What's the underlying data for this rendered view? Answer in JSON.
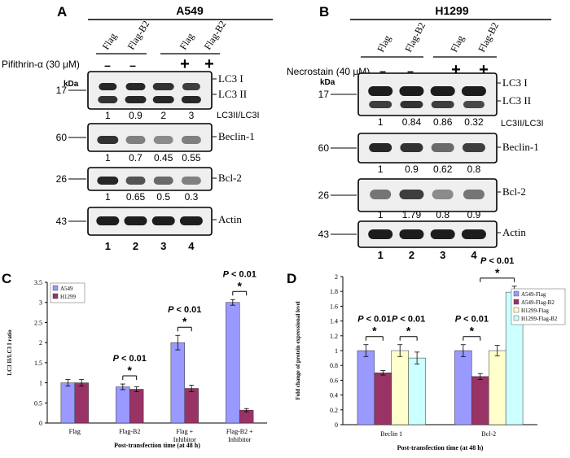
{
  "panels": {
    "A": {
      "label": "A",
      "cell_line": "A549",
      "lanes": [
        "Flag",
        "Flag-B2",
        "Flag",
        "Flag-B2"
      ],
      "treatment_label": "Pifithrin-α (30 μM)",
      "treatment_signs": [
        "–",
        "–",
        "+",
        "+"
      ],
      "kda_label": "kDa",
      "blots": [
        {
          "kda": "17",
          "labels": [
            "LC3 I",
            "LC3 II"
          ],
          "values": [
            "1",
            "0.9",
            "2",
            "3"
          ],
          "ratio_label": "LC3II/LC3I"
        },
        {
          "kda": "60",
          "labels": [
            "Beclin-1"
          ],
          "values": [
            "1",
            "0.7",
            "0.45",
            "0.55"
          ]
        },
        {
          "kda": "26",
          "labels": [
            "Bcl-2"
          ],
          "values": [
            "1",
            "0.65",
            "0.5",
            "0.3"
          ]
        },
        {
          "kda": "43",
          "labels": [
            "Actin"
          ],
          "values": []
        }
      ],
      "lane_numbers": [
        "1",
        "2",
        "3",
        "4"
      ]
    },
    "B": {
      "label": "B",
      "cell_line": "H1299",
      "lanes": [
        "Flag",
        "Flag-B2",
        "Flag",
        "Flag-B2"
      ],
      "treatment_label": "Necrostain (40 μM)",
      "treatment_signs": [
        "–",
        "–",
        "+",
        "+"
      ],
      "kda_label": "kDa",
      "blots": [
        {
          "kda": "17",
          "labels": [
            "LC3 I",
            "LC3 II"
          ],
          "values": [
            "1",
            "0.84",
            "0.86",
            "0.32"
          ],
          "ratio_label": "LC3II/LC3I"
        },
        {
          "kda": "60",
          "labels": [
            "Beclin-1"
          ],
          "values": [
            "1",
            "0.9",
            "0.62",
            "0.8"
          ]
        },
        {
          "kda": "26",
          "labels": [
            "Bcl-2"
          ],
          "values": [
            "1",
            "1.79",
            "0.8",
            "0.9"
          ]
        },
        {
          "kda": "43",
          "labels": [
            "Actin"
          ],
          "values": []
        }
      ],
      "lane_numbers": [
        "1",
        "2",
        "3",
        "4"
      ]
    }
  },
  "chart_data": [
    {
      "panel": "C",
      "type": "bar",
      "categories": [
        "Flag",
        "Flag-B2",
        "Flag + Inhibitor",
        "Flag-B2 + Inhibitor"
      ],
      "series": [
        {
          "name": "A549",
          "color": "#9999ff",
          "values": [
            1.0,
            0.9,
            2.0,
            3.0
          ],
          "errors": [
            0.08,
            0.07,
            0.18,
            0.07
          ]
        },
        {
          "name": "H1299",
          "color": "#993366",
          "values": [
            1.0,
            0.84,
            0.86,
            0.32
          ],
          "errors": [
            0.08,
            0.06,
            0.08,
            0.04
          ]
        }
      ],
      "ylabel": "LC3 II/LC3 I ratio",
      "xlabel": "Post-transfection time (at 48 h)",
      "ylim": [
        0,
        3.5
      ],
      "yticks": [
        "0",
        "0.5",
        "1",
        "1.5",
        "2",
        "2.5",
        "3",
        "3.5"
      ],
      "annotations": [
        {
          "category": 1,
          "pvalue": "P < 0.01",
          "star": "*"
        },
        {
          "category": 2,
          "pvalue": "P < 0.01",
          "star": "*"
        },
        {
          "category": 3,
          "pvalue": "P < 0.01",
          "star": "*"
        }
      ]
    },
    {
      "panel": "D",
      "type": "bar",
      "categories": [
        "Beclin 1",
        "Bcl-2"
      ],
      "series": [
        {
          "name": "A549-Flag",
          "color": "#9999ff",
          "values": [
            1.0,
            1.0
          ],
          "errors": [
            0.08,
            0.08
          ]
        },
        {
          "name": "A549-Flag-B2",
          "color": "#993366",
          "values": [
            0.7,
            0.65
          ],
          "errors": [
            0.03,
            0.04
          ]
        },
        {
          "name": "H1299-Flag",
          "color": "#ffffcc",
          "values": [
            1.0,
            1.0
          ],
          "errors": [
            0.08,
            0.07
          ]
        },
        {
          "name": "H1299-Flag-B2",
          "color": "#ccffff",
          "values": [
            0.9,
            1.79
          ],
          "errors": [
            0.08,
            0.08
          ]
        }
      ],
      "ylabel": "Fold change of protein expressional level",
      "xlabel": "Post-transfection time (at 48 h)",
      "ylim": [
        0,
        2
      ],
      "yticks": [
        "0",
        "0.2",
        "0.4",
        "0.6",
        "0.8",
        "1",
        "1.2",
        "1.4",
        "1.6",
        "1.8",
        "2"
      ],
      "annotations": [
        {
          "category": 0,
          "pair": [
            0,
            1
          ],
          "pvalue": "P < 0.01",
          "star": "*"
        },
        {
          "category": 0,
          "pair": [
            2,
            3
          ],
          "pvalue": "P < 0.01",
          "star": "*"
        },
        {
          "category": 1,
          "pair": [
            0,
            1
          ],
          "pvalue": "P < 0.01",
          "star": "*"
        },
        {
          "category": 1,
          "pair": [
            1,
            3
          ],
          "pvalue": "P < 0.01",
          "star": "*"
        }
      ]
    }
  ],
  "chart_labels": {
    "C": "C",
    "D": "D"
  }
}
